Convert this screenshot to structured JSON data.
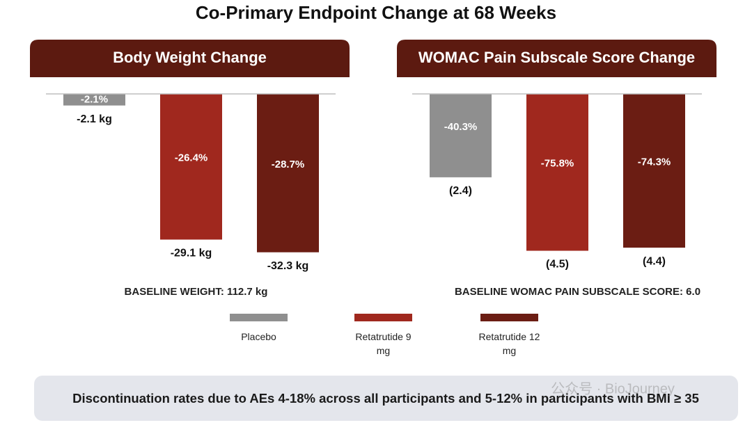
{
  "title": "Co-Primary Endpoint Change at 68 Weeks",
  "legend": [
    {
      "name": "Placebo",
      "color": "#8f8f8f"
    },
    {
      "name": "Retatrutide 9 mg",
      "color": "#a0281e"
    },
    {
      "name": "Retatrutide 12 mg",
      "color": "#6b1d13"
    }
  ],
  "footer": "Discontinuation rates due to AEs 4-18% across all participants and 5-12% in participants with BMI ≥ 35",
  "watermark": "公众号 · BioJourney",
  "chart_data": [
    {
      "type": "bar",
      "title": "Body Weight Change",
      "categories": [
        "Placebo",
        "Retatrutide 9 mg",
        "Retatrutide 12 mg"
      ],
      "values": [
        -2.1,
        -26.4,
        -28.7
      ],
      "value_labels": [
        "-2.1%",
        "-26.4%",
        "-28.7%"
      ],
      "secondary_labels": [
        "-2.1 kg",
        "-29.1 kg",
        "-32.3 kg"
      ],
      "colors": [
        "#8f8f8f",
        "#a0281e",
        "#6b1d13"
      ],
      "ylim": [
        -30,
        0
      ],
      "note": "BASELINE WEIGHT: 112.7 kg"
    },
    {
      "type": "bar",
      "title": "WOMAC Pain Subscale Score Change",
      "categories": [
        "Placebo",
        "Retatrutide 9 mg",
        "Retatrutide 12 mg"
      ],
      "values": [
        -40.3,
        -75.8,
        -74.3
      ],
      "value_labels": [
        "-40.3%",
        "-75.8%",
        "-74.3%"
      ],
      "secondary_labels": [
        "(2.4)",
        "(4.5)",
        "(4.4)"
      ],
      "colors": [
        "#8f8f8f",
        "#a0281e",
        "#6b1d13"
      ],
      "ylim": [
        -80,
        0
      ],
      "note": "BASELINE WOMAC PAIN SUBSCALE SCORE: 6.0"
    }
  ]
}
